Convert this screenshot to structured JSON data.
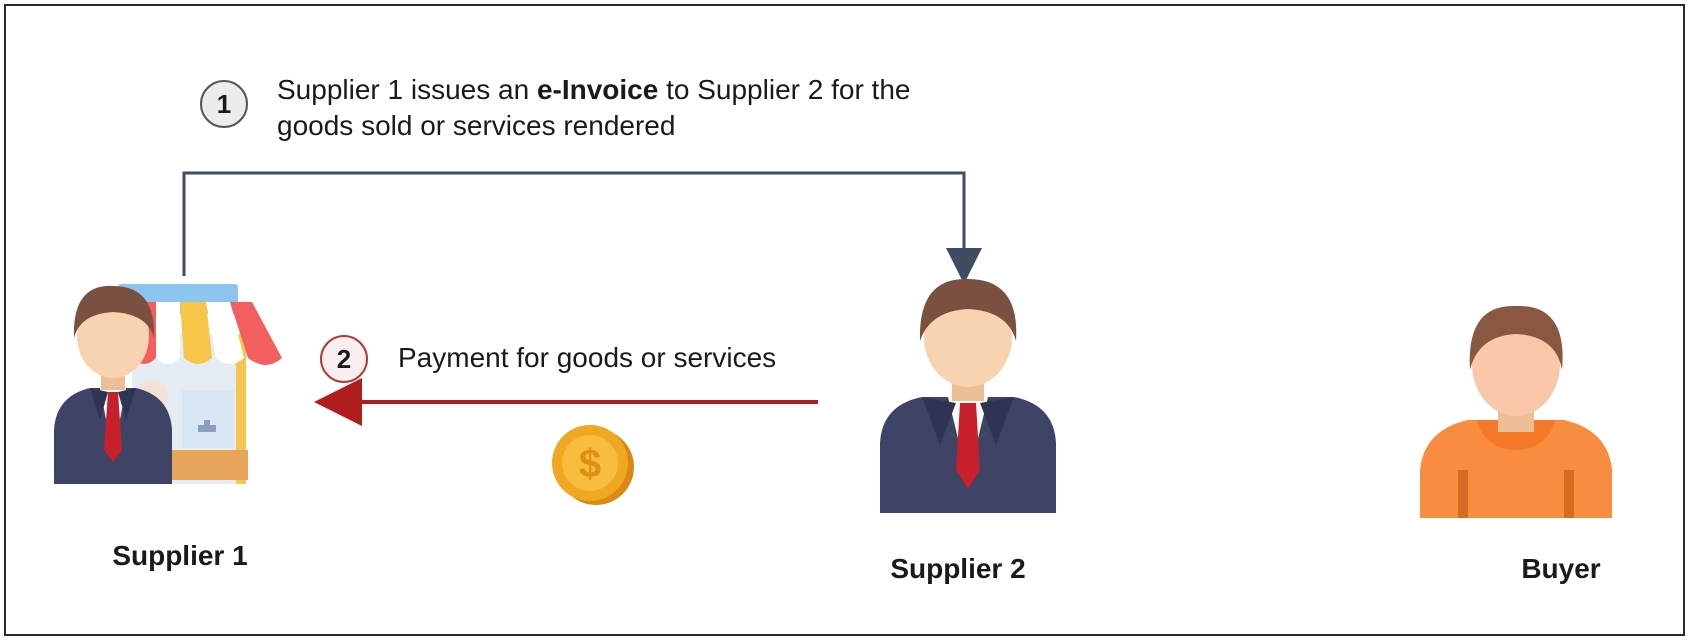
{
  "steps": [
    {
      "number": "1",
      "text_before": "Supplier 1 issues an ",
      "text_bold": "e-Invoice",
      "text_after": " to Supplier 2 for the goods sold or services rendered"
    },
    {
      "number": "2",
      "text": "Payment for goods or services"
    }
  ],
  "actors": {
    "supplier1": "Supplier 1",
    "supplier2": "Supplier 2",
    "buyer": "Buyer"
  },
  "colors": {
    "invoice_arrow": "#3f4d63",
    "payment_arrow": "#b01d1d",
    "coin": "#f0a820",
    "suit": "#3d4466",
    "tie": "#c8202a",
    "hair": "#7a5040",
    "skin": "#f8d3b0",
    "buyer_shirt": "#f98d3f"
  },
  "icons": {
    "supplier1": "shopkeeper-icon",
    "supplier2": "businessman-icon",
    "buyer": "person-icon",
    "coin": "dollar-coin-icon"
  }
}
